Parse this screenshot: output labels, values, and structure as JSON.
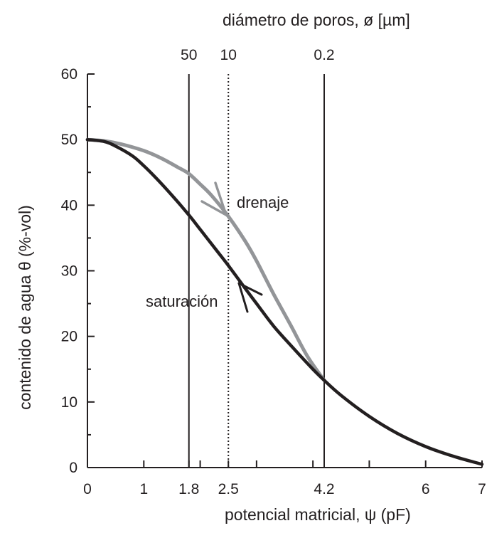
{
  "chart_data": {
    "type": "line",
    "top_axis_label": "diámetro de poros, ø  [µm]",
    "xlabel": "potencial matricial,  ψ  (pF)",
    "ylabel": "contenido de agua  θ  (%-vol)",
    "xlim": [
      0,
      7
    ],
    "ylim": [
      0,
      60
    ],
    "x_ticks": [
      0,
      1,
      1.8,
      2.5,
      4.2,
      6,
      7
    ],
    "x_ticks_unlabeled": [
      2,
      3,
      4,
      5
    ],
    "y_ticks": [
      0,
      10,
      20,
      30,
      40,
      50,
      60
    ],
    "top_ticks": [
      {
        "label": "50",
        "pF": 1.8
      },
      {
        "label": "10",
        "pF": 2.5
      },
      {
        "label": "0.2",
        "pF": 4.2
      }
    ],
    "reference_lines": [
      {
        "pF": 1.8,
        "style": "solid"
      },
      {
        "pF": 2.5,
        "style": "dotted"
      },
      {
        "pF": 4.2,
        "style": "solid"
      }
    ],
    "series": [
      {
        "name": "saturación",
        "color": "#231f20",
        "x": [
          0.0,
          0.3,
          0.5,
          0.8,
          1.0,
          1.2,
          1.5,
          1.8,
          2.0,
          2.3,
          2.5,
          2.8,
          3.0,
          3.3,
          3.6,
          4.0,
          4.2,
          4.5,
          5.0,
          5.5,
          6.0,
          6.5,
          7.0
        ],
        "values": [
          50.0,
          49.7,
          49.0,
          47.5,
          46.0,
          44.3,
          41.5,
          38.5,
          36.3,
          33.0,
          30.8,
          27.3,
          25.0,
          21.6,
          18.7,
          15.0,
          13.3,
          11.0,
          7.8,
          5.2,
          3.2,
          1.7,
          0.5
        ]
      },
      {
        "name": "drenaje",
        "color": "#939598",
        "x": [
          0.0,
          0.3,
          0.6,
          1.0,
          1.3,
          1.6,
          1.8,
          2.0,
          2.2,
          2.5,
          2.8,
          3.0,
          3.3,
          3.6,
          3.9,
          4.2
        ],
        "values": [
          50.0,
          49.8,
          49.3,
          48.3,
          47.2,
          45.8,
          44.8,
          43.2,
          41.5,
          38.3,
          34.5,
          31.5,
          26.5,
          21.8,
          17.0,
          13.3
        ]
      }
    ],
    "annotations": [
      {
        "text": "drenaje",
        "at_pF": 2.5,
        "at_theta": 38.3,
        "arrow_color": "#939598"
      },
      {
        "text": "saturación",
        "at_pF": 2.75,
        "at_theta": 28.0,
        "arrow_color": "#231f20"
      }
    ]
  }
}
